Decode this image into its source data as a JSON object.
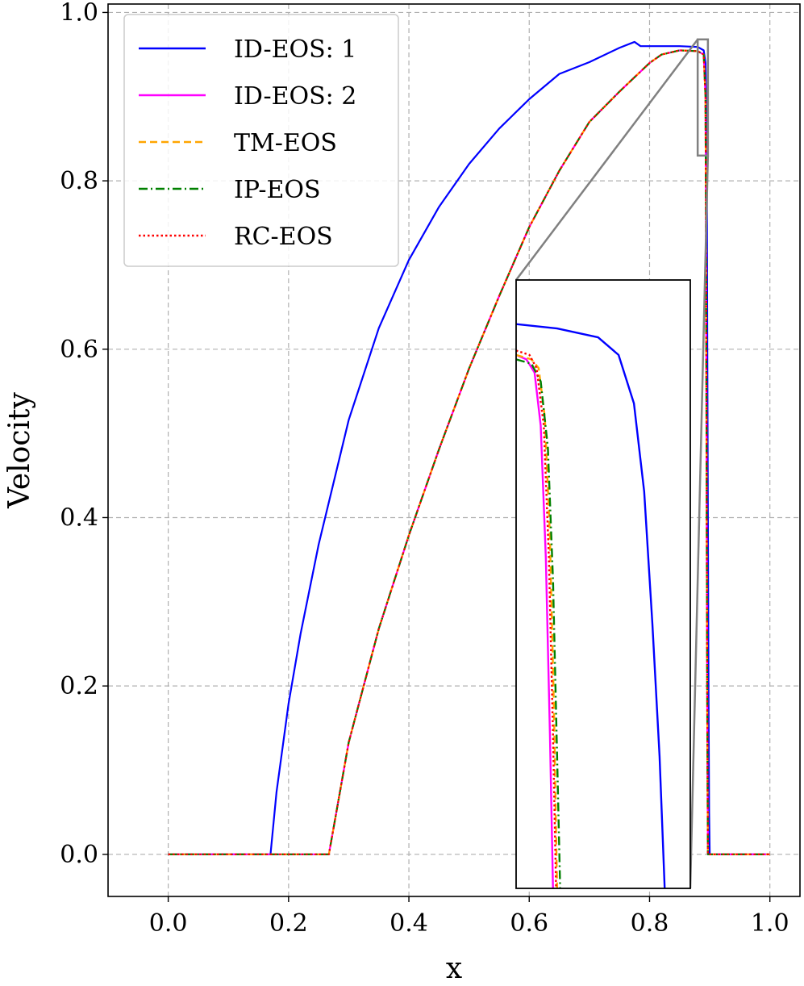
{
  "chart_data": {
    "type": "line",
    "xlabel": "x",
    "ylabel": "Velocity",
    "xlim": [
      -0.1,
      1.05
    ],
    "ylim": [
      -0.05,
      1.01
    ],
    "xticks": [
      0.0,
      0.2,
      0.4,
      0.6,
      0.8,
      1.0
    ],
    "xtick_labels": [
      "0.0",
      "0.2",
      "0.4",
      "0.6",
      "0.8",
      "1.0"
    ],
    "yticks": [
      0.0,
      0.2,
      0.4,
      0.6,
      0.8,
      1.0
    ],
    "ytick_labels": [
      "0.0",
      "0.2",
      "0.4",
      "0.6",
      "0.8",
      "1.0"
    ],
    "grid": true,
    "legend_position": "top-left",
    "series": [
      {
        "name": "ID-EOS: 1",
        "color": "#0000ff",
        "style": "solid",
        "x": [
          0,
          0.17,
          0.18,
          0.2,
          0.22,
          0.25,
          0.3,
          0.35,
          0.4,
          0.45,
          0.5,
          0.55,
          0.6,
          0.65,
          0.7,
          0.75,
          0.775,
          0.785,
          0.8,
          0.85,
          0.88,
          0.89,
          0.893,
          0.895,
          0.896,
          0.897,
          0.898,
          0.899,
          0.9,
          1.0
        ],
        "y": [
          0,
          0,
          0.074,
          0.179,
          0.262,
          0.368,
          0.516,
          0.625,
          0.706,
          0.769,
          0.82,
          0.862,
          0.897,
          0.927,
          0.941,
          0.958,
          0.965,
          0.96,
          0.96,
          0.96,
          0.959,
          0.955,
          0.94,
          0.85,
          0.6,
          0.4,
          0.2,
          0.05,
          0,
          0
        ]
      },
      {
        "name": "ID-EOS: 2",
        "color": "#ff00ff",
        "style": "solid",
        "x": [
          0,
          0.267,
          0.27,
          0.3,
          0.35,
          0.4,
          0.45,
          0.5,
          0.55,
          0.6,
          0.65,
          0.7,
          0.75,
          0.8,
          0.82,
          0.85,
          0.88,
          0.89,
          0.893,
          0.894,
          0.895,
          0.896,
          0.897,
          1.0
        ],
        "y": [
          0,
          0,
          0.012,
          0.133,
          0.268,
          0.379,
          0.481,
          0.577,
          0.663,
          0.745,
          0.812,
          0.87,
          0.906,
          0.94,
          0.95,
          0.955,
          0.954,
          0.95,
          0.9,
          0.7,
          0.4,
          0.15,
          0,
          0
        ]
      },
      {
        "name": "TM-EOS",
        "color": "#ffa500",
        "style": "dashed",
        "x": [
          0,
          0.267,
          0.27,
          0.3,
          0.35,
          0.4,
          0.45,
          0.5,
          0.55,
          0.6,
          0.65,
          0.7,
          0.75,
          0.8,
          0.82,
          0.85,
          0.88,
          0.89,
          0.893,
          0.894,
          0.895,
          0.896,
          0.897,
          1.0
        ],
        "y": [
          0,
          0,
          0.012,
          0.133,
          0.268,
          0.379,
          0.481,
          0.577,
          0.663,
          0.745,
          0.812,
          0.87,
          0.906,
          0.94,
          0.95,
          0.955,
          0.954,
          0.95,
          0.9,
          0.7,
          0.4,
          0.15,
          0,
          0
        ]
      },
      {
        "name": "IP-EOS",
        "color": "#008000",
        "style": "dashdot",
        "x": [
          0,
          0.267,
          0.27,
          0.3,
          0.35,
          0.4,
          0.45,
          0.5,
          0.55,
          0.6,
          0.65,
          0.7,
          0.75,
          0.8,
          0.82,
          0.85,
          0.88,
          0.89,
          0.893,
          0.894,
          0.895,
          0.896,
          0.897,
          1.0
        ],
        "y": [
          0,
          0,
          0.012,
          0.133,
          0.268,
          0.379,
          0.481,
          0.577,
          0.663,
          0.745,
          0.812,
          0.87,
          0.906,
          0.94,
          0.95,
          0.955,
          0.954,
          0.95,
          0.9,
          0.7,
          0.4,
          0.15,
          0,
          0
        ]
      },
      {
        "name": "RC-EOS",
        "color": "#ff0000",
        "style": "dotted",
        "x": [
          0,
          0.267,
          0.27,
          0.3,
          0.35,
          0.4,
          0.45,
          0.5,
          0.55,
          0.6,
          0.65,
          0.7,
          0.75,
          0.8,
          0.82,
          0.85,
          0.88,
          0.89,
          0.893,
          0.894,
          0.895,
          0.896,
          0.897,
          1.0
        ],
        "y": [
          0,
          0,
          0.012,
          0.133,
          0.268,
          0.379,
          0.481,
          0.577,
          0.663,
          0.745,
          0.812,
          0.87,
          0.906,
          0.94,
          0.95,
          0.955,
          0.954,
          0.95,
          0.9,
          0.7,
          0.4,
          0.15,
          0,
          0
        ]
      }
    ],
    "inset": {
      "region_xlim": [
        0.88,
        0.897
      ],
      "region_ylim": [
        0.83,
        0.968
      ],
      "connector_color": "#808080",
      "curves": [
        {
          "series": "ID-EOS: 1",
          "x": [
            0.88,
            0.884,
            0.888,
            0.89,
            0.8915,
            0.8925,
            0.8933,
            0.894,
            0.8945
          ],
          "y": [
            0.958,
            0.957,
            0.955,
            0.951,
            0.94,
            0.92,
            0.89,
            0.86,
            0.83
          ]
        },
        {
          "series": "ID-EOS: 2",
          "x": [
            0.88,
            0.881,
            0.8818,
            0.8824,
            0.8829,
            0.8833,
            0.8836
          ],
          "y": [
            0.951,
            0.95,
            0.947,
            0.935,
            0.905,
            0.865,
            0.83
          ]
        },
        {
          "series": "TM-EOS",
          "x": [
            0.88,
            0.8815,
            0.8822,
            0.8828,
            0.8833,
            0.8837,
            0.884
          ],
          "y": [
            0.951,
            0.95,
            0.948,
            0.937,
            0.91,
            0.87,
            0.83
          ]
        },
        {
          "series": "IP-EOS",
          "x": [
            0.88,
            0.8815,
            0.8824,
            0.8831,
            0.8836,
            0.884,
            0.8843
          ],
          "y": [
            0.95,
            0.949,
            0.945,
            0.93,
            0.9,
            0.86,
            0.83
          ]
        },
        {
          "series": "RC-EOS",
          "x": [
            0.88,
            0.8813,
            0.882,
            0.8827,
            0.8832,
            0.8836,
            0.8839
          ],
          "y": [
            0.952,
            0.951,
            0.948,
            0.935,
            0.905,
            0.865,
            0.83
          ]
        }
      ]
    }
  }
}
